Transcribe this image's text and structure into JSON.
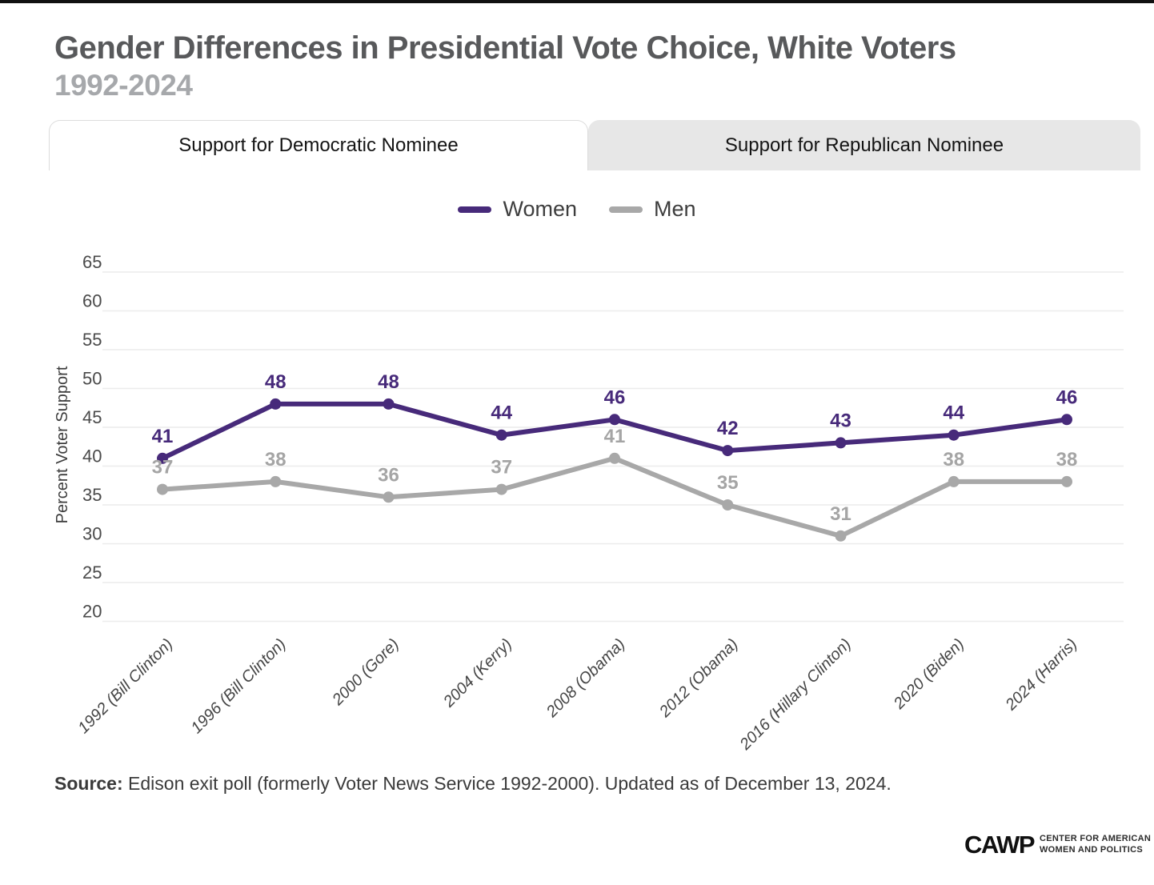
{
  "page": {
    "title": "Gender Differences in Presidential Vote Choice, White Voters",
    "subtitle": "1992-2024",
    "source_label": "Source:",
    "source_text": " Edison exit poll (formerly Voter News Service 1992-2000). Updated as of December 13, 2024."
  },
  "tabs": [
    {
      "label": "Support for Democratic Nominee",
      "active": true
    },
    {
      "label": "Support for Republican Nominee",
      "active": false
    }
  ],
  "legend": [
    {
      "label": "Women",
      "color": "#472a7a"
    },
    {
      "label": "Men",
      "color": "#a8a8a8"
    }
  ],
  "logo": {
    "acronym": "CAWP",
    "line1": "CENTER FOR AMERICAN",
    "line2": "WOMEN AND POLITICS"
  },
  "colors": {
    "women": "#472a7a",
    "men": "#a8a8a8",
    "men_label": "#a5a5a5",
    "gridline": "#ececec",
    "tick_text": "#4a4a4a",
    "title": "#58595b",
    "subtitle": "#a6a8ab"
  },
  "chart_data": {
    "type": "line",
    "title": "Support for Democratic Nominee",
    "categories": [
      "1992 (Bill Clinton)",
      "1996 (Bill Clinton)",
      "2000 (Gore)",
      "2004 (Kerry)",
      "2008 (Obama)",
      "2012 (Obama)",
      "2016 (Hillary Clinton)",
      "2020 (Biden)",
      "2024 (Harris)"
    ],
    "series": [
      {
        "name": "Women",
        "values": [
          41,
          48,
          48,
          44,
          46,
          42,
          43,
          44,
          46
        ],
        "color": "#472a7a",
        "label_color": "#472a7a"
      },
      {
        "name": "Men",
        "values": [
          37,
          38,
          36,
          37,
          41,
          35,
          31,
          38,
          38
        ],
        "color": "#a8a8a8",
        "label_color": "#a5a5a5"
      }
    ],
    "xlabel": "",
    "ylabel": "Percent Voter Support",
    "ylim": [
      20,
      65
    ],
    "yticks": [
      20,
      25,
      30,
      35,
      40,
      45,
      50,
      55,
      60,
      65
    ],
    "grid": true,
    "show_value_labels": true,
    "legend_position": "top-center"
  }
}
